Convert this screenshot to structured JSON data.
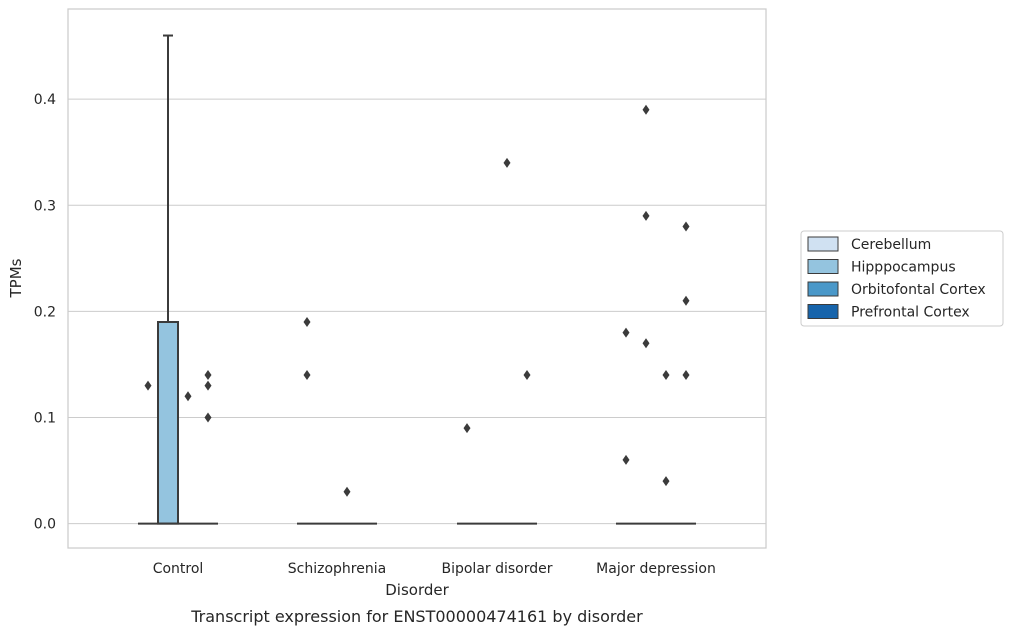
{
  "chart_data": {
    "type": "box",
    "caption": "Transcript expression for ENST00000474161 by disorder",
    "xlabel": "Disorder",
    "ylabel": "TPMs",
    "categories": [
      "Control",
      "Schizophrenia",
      "Bipolar disorder",
      "Major depression"
    ],
    "ylim": [
      -0.023,
      0.485
    ],
    "yticks": [
      0.0,
      0.1,
      0.2,
      0.3,
      0.4
    ],
    "ytick_labels": [
      "0.0",
      "0.1",
      "0.2",
      "0.3",
      "0.4"
    ],
    "grid": true,
    "legend_position": "right",
    "series": [
      {
        "name": "Cerebellum",
        "color": "#d0e1f2",
        "boxes": [
          {
            "q1": 0,
            "median": 0,
            "q3": 0,
            "whisker_low": 0,
            "whisker_high": 0,
            "outliers": [
              0.13
            ]
          },
          {
            "q1": 0,
            "median": 0,
            "q3": 0,
            "whisker_low": 0,
            "whisker_high": 0,
            "outliers": [
              0.19,
              0.14
            ]
          },
          {
            "q1": 0,
            "median": 0,
            "q3": 0,
            "whisker_low": 0,
            "whisker_high": 0,
            "outliers": [
              0.09
            ]
          },
          {
            "q1": 0,
            "median": 0,
            "q3": 0,
            "whisker_low": 0,
            "whisker_high": 0,
            "outliers": [
              0.18,
              0.06
            ]
          }
        ]
      },
      {
        "name": "Hipppocampus",
        "color": "#94c4df",
        "boxes": [
          {
            "q1": 0,
            "median": 0,
            "q3": 0.19,
            "whisker_low": 0,
            "whisker_high": 0.46,
            "outliers": []
          },
          {
            "q1": 0,
            "median": 0,
            "q3": 0,
            "whisker_low": 0,
            "whisker_high": 0,
            "outliers": []
          },
          {
            "q1": 0,
            "median": 0,
            "q3": 0,
            "whisker_low": 0,
            "whisker_high": 0,
            "outliers": []
          },
          {
            "q1": 0,
            "median": 0,
            "q3": 0,
            "whisker_low": 0,
            "whisker_high": 0,
            "outliers": [
              0.39,
              0.29,
              0.17
            ]
          }
        ]
      },
      {
        "name": "Orbitofontal Cortex",
        "color": "#4a98c9",
        "boxes": [
          {
            "q1": 0,
            "median": 0,
            "q3": 0,
            "whisker_low": 0,
            "whisker_high": 0,
            "outliers": [
              0.12
            ]
          },
          {
            "q1": 0,
            "median": 0,
            "q3": 0,
            "whisker_low": 0,
            "whisker_high": 0,
            "outliers": [
              0.03
            ]
          },
          {
            "q1": 0,
            "median": 0,
            "q3": 0,
            "whisker_low": 0,
            "whisker_high": 0,
            "outliers": [
              0.34
            ]
          },
          {
            "q1": 0,
            "median": 0,
            "q3": 0,
            "whisker_low": 0,
            "whisker_high": 0,
            "outliers": [
              0.14,
              0.04
            ]
          }
        ]
      },
      {
        "name": "Prefrontal Cortex",
        "color": "#1764ab",
        "boxes": [
          {
            "q1": 0,
            "median": 0,
            "q3": 0,
            "whisker_low": 0,
            "whisker_high": 0,
            "outliers": [
              0.14,
              0.13,
              0.1
            ]
          },
          {
            "q1": 0,
            "median": 0,
            "q3": 0,
            "whisker_low": 0,
            "whisker_high": 0,
            "outliers": []
          },
          {
            "q1": 0,
            "median": 0,
            "q3": 0,
            "whisker_low": 0,
            "whisker_high": 0,
            "outliers": [
              0.14
            ]
          },
          {
            "q1": 0,
            "median": 0,
            "q3": 0,
            "whisker_low": 0,
            "whisker_high": 0,
            "outliers": [
              0.28,
              0.21,
              0.14
            ]
          }
        ]
      }
    ]
  }
}
